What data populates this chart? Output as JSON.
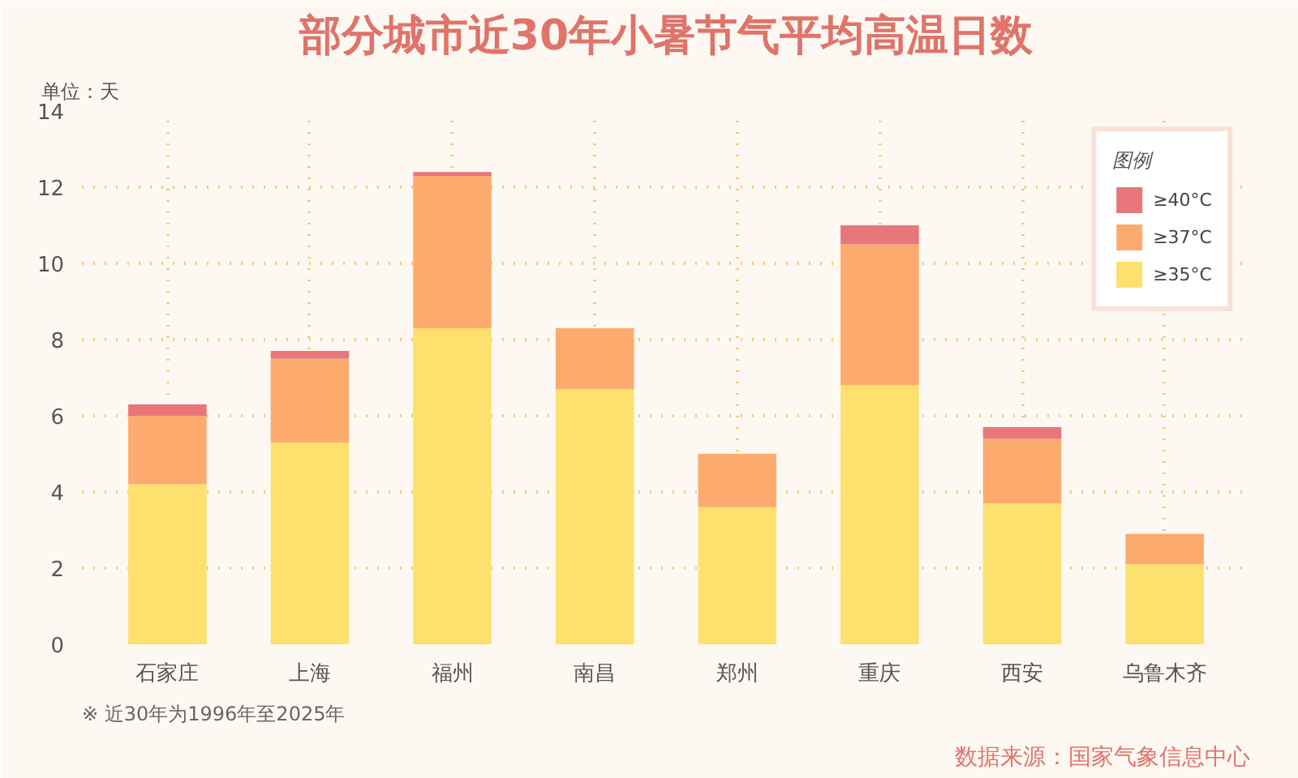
{
  "chart_data": {
    "type": "bar",
    "stacked": true,
    "title": "部分城市近30年小暑节气平均高温日数",
    "ylabel": "单位：天",
    "legend_title": "图例",
    "categories": [
      "石家庄",
      "上海",
      "福州",
      "南昌",
      "郑州",
      "重庆",
      "西安",
      "乌鲁木齐"
    ],
    "series": [
      {
        "name": "≥35°C",
        "color": "#fde06e",
        "values": [
          4.2,
          5.3,
          8.3,
          6.7,
          3.6,
          6.8,
          3.7,
          2.1
        ]
      },
      {
        "name": "≥37°C",
        "color": "#fdaa6e",
        "values": [
          1.8,
          2.2,
          4.0,
          1.6,
          1.4,
          3.7,
          1.7,
          0.8
        ]
      },
      {
        "name": "≥40°C",
        "color": "#e8767a",
        "values": [
          0.3,
          0.2,
          0.1,
          0,
          0,
          0.5,
          0.3,
          0
        ]
      }
    ],
    "ylim": [
      0,
      14
    ],
    "yticks": [
      0,
      2,
      4,
      6,
      8,
      10,
      12,
      14
    ],
    "grid": true,
    "legend": "top right",
    "annotations": [
      "※ 近30年为1996年至2025年",
      "数据来源：国家气象信息中心"
    ]
  }
}
